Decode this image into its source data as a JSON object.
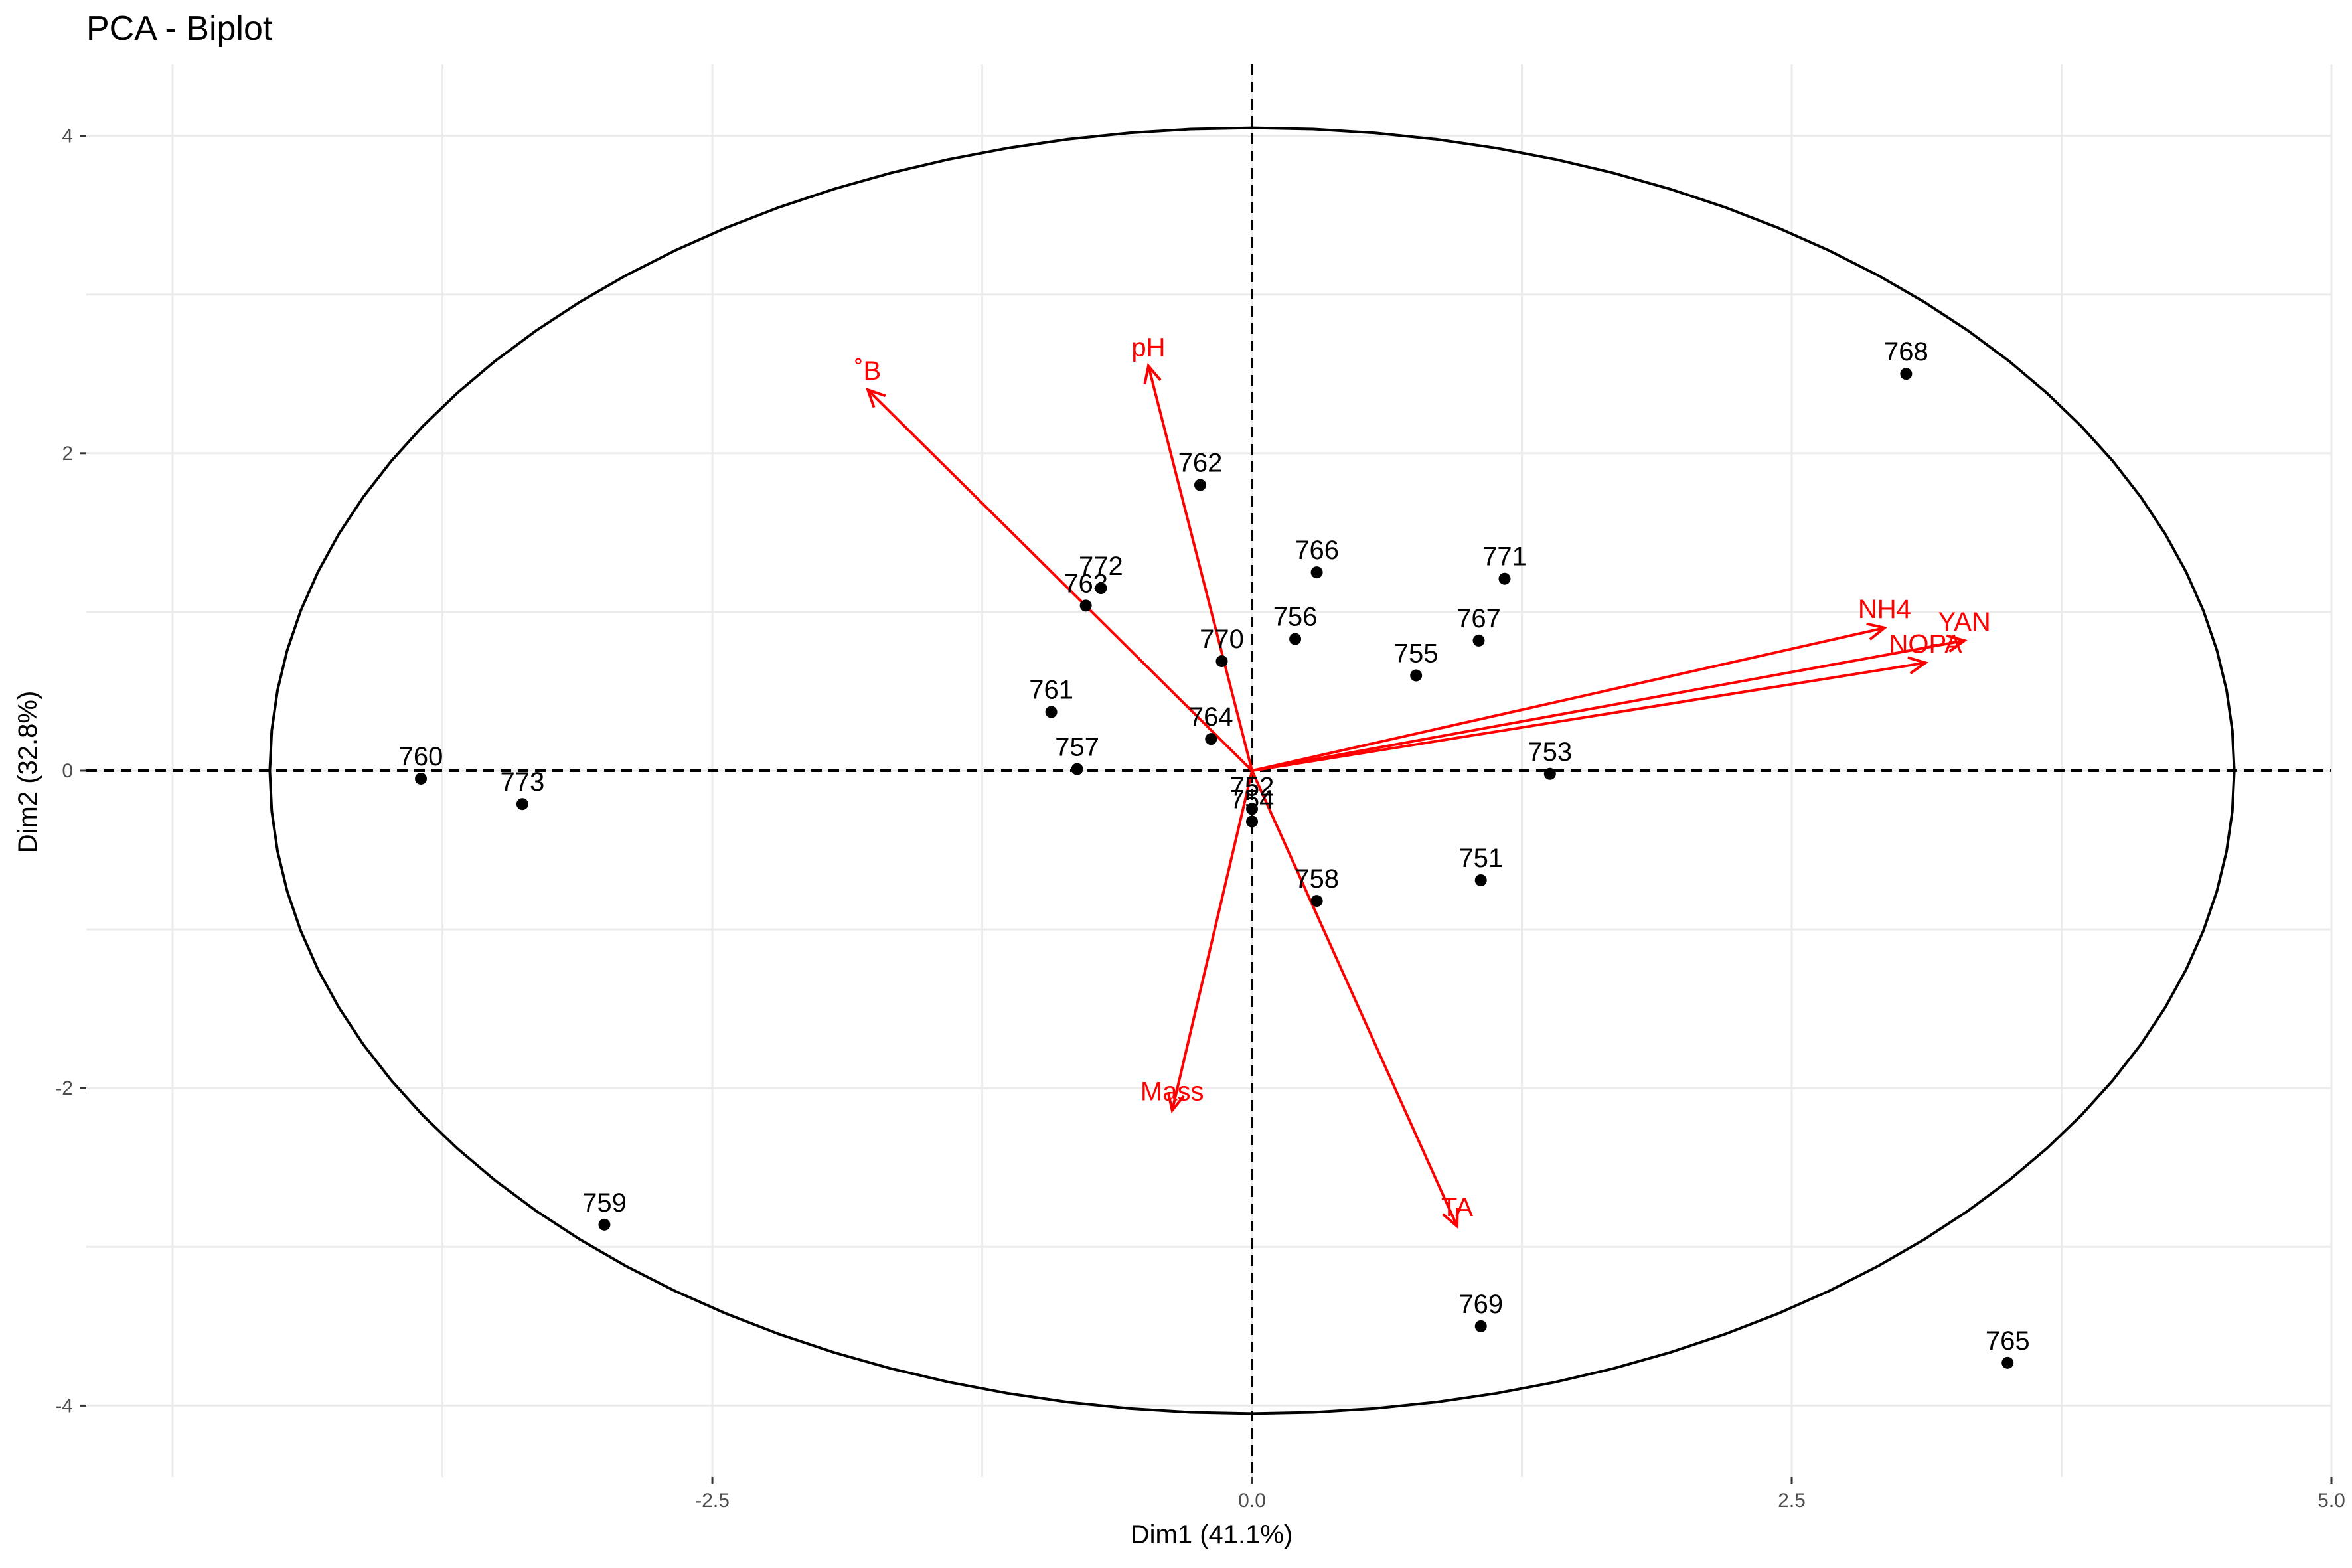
{
  "chart_data": {
    "type": "scatter",
    "title": "PCA - Biplot",
    "xlabel": "Dim1 (41.1%)",
    "ylabel": "Dim2 (32.8%)",
    "xlim": [
      -5.4,
      5.0
    ],
    "ylim": [
      -4.45,
      4.45
    ],
    "xticks": [
      -2.5,
      0.0,
      2.5,
      5.0
    ],
    "xtick_labels": [
      "-2.5",
      "0.0",
      "2.5",
      "5.0"
    ],
    "yticks": [
      -4,
      -2,
      0,
      2,
      4
    ],
    "ytick_labels": [
      "-4",
      "-2",
      "0",
      "2",
      "4"
    ],
    "grid": true,
    "reference_lines": {
      "x": 0,
      "y": 0,
      "style": "dashed"
    },
    "circle": {
      "radius_x": 4.55,
      "radius_y": 4.05
    },
    "points": [
      {
        "label": "760",
        "x": -3.85,
        "y": -0.05
      },
      {
        "label": "773",
        "x": -3.38,
        "y": -0.21
      },
      {
        "label": "759",
        "x": -3.0,
        "y": -2.86
      },
      {
        "label": "761",
        "x": -0.93,
        "y": 0.37
      },
      {
        "label": "757",
        "x": -0.81,
        "y": 0.01
      },
      {
        "label": "772",
        "x": -0.7,
        "y": 1.15
      },
      {
        "label": "763",
        "x": -0.77,
        "y": 1.04
      },
      {
        "label": "762",
        "x": -0.24,
        "y": 1.8
      },
      {
        "label": "770",
        "x": -0.14,
        "y": 0.69
      },
      {
        "label": "764",
        "x": -0.19,
        "y": 0.2
      },
      {
        "label": "752",
        "x": 0.0,
        "y": -0.24
      },
      {
        "label": "754",
        "x": 0.0,
        "y": -0.32
      },
      {
        "label": "766",
        "x": 0.3,
        "y": 1.25
      },
      {
        "label": "756",
        "x": 0.2,
        "y": 0.83
      },
      {
        "label": "758",
        "x": 0.3,
        "y": -0.82
      },
      {
        "label": "755",
        "x": 0.76,
        "y": 0.6
      },
      {
        "label": "771",
        "x": 1.17,
        "y": 1.21
      },
      {
        "label": "767",
        "x": 1.05,
        "y": 0.82
      },
      {
        "label": "751",
        "x": 1.06,
        "y": -0.69
      },
      {
        "label": "753",
        "x": 1.38,
        "y": -0.02
      },
      {
        "label": "769",
        "x": 1.06,
        "y": -3.5
      },
      {
        "label": "768",
        "x": 3.03,
        "y": 2.5
      },
      {
        "label": "765",
        "x": 3.5,
        "y": -3.73
      }
    ],
    "variables": [
      {
        "label": "˚B",
        "x": -1.78,
        "y": 2.4
      },
      {
        "label": "pH",
        "x": -0.48,
        "y": 2.55
      },
      {
        "label": "NH4",
        "x": 2.93,
        "y": 0.9
      },
      {
        "label": "YAN",
        "x": 3.3,
        "y": 0.82
      },
      {
        "label": "NOPA",
        "x": 3.12,
        "y": 0.68
      },
      {
        "label": "Mass",
        "x": -0.37,
        "y": -2.14
      },
      {
        "label": "TA",
        "x": 0.95,
        "y": -2.87
      }
    ],
    "colors": {
      "points": "#000000",
      "variables": "#ff0000",
      "grid": "#ebebeb",
      "circle": "#000000"
    }
  }
}
